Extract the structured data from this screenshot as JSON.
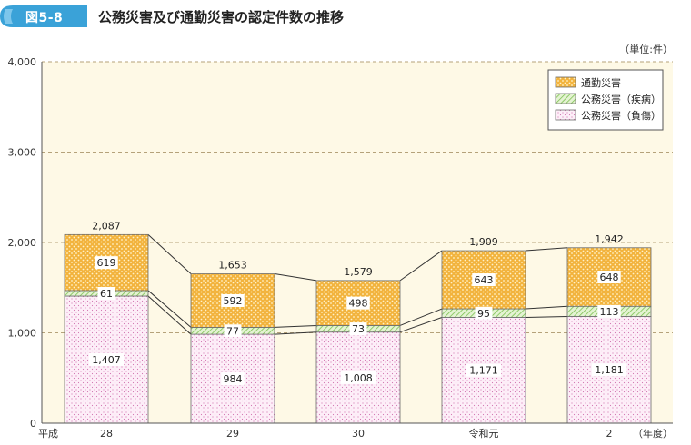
{
  "figure": {
    "number": "図5-8",
    "title": "公務災害及び通勤災害の認定件数の推移"
  },
  "chart_data": {
    "type": "bar",
    "stacked": true,
    "unit_label": "（単位:件）",
    "x_prefix": "平成",
    "x_suffix": "（年度）",
    "categories": [
      "28",
      "29",
      "30",
      "令和元",
      "2"
    ],
    "series": [
      {
        "name": "公務災害（負傷）",
        "values": [
          1407,
          984,
          1008,
          1171,
          1181
        ],
        "color": "#f7c8e6",
        "pattern": "dots-pink"
      },
      {
        "name": "公務災害（疾病）",
        "values": [
          61,
          77,
          73,
          95,
          113
        ],
        "color": "#cfeab2",
        "pattern": "hatch-green"
      },
      {
        "name": "通勤災害",
        "values": [
          619,
          592,
          498,
          643,
          648
        ],
        "color": "#f2b33d",
        "pattern": "dots-orange"
      }
    ],
    "totals": [
      2087,
      1653,
      1579,
      1909,
      1942
    ],
    "value_labels": [
      [
        "1,407",
        "984",
        "1,008",
        "1,171",
        "1,181"
      ],
      [
        "61",
        "77",
        "73",
        "95",
        "113"
      ],
      [
        "619",
        "592",
        "498",
        "643",
        "648"
      ]
    ],
    "total_labels": [
      "2,087",
      "1,653",
      "1,579",
      "1,909",
      "1,942"
    ],
    "y_ticks": [
      0,
      1000,
      2000,
      3000,
      4000
    ],
    "y_tick_labels": [
      "0",
      "1,000",
      "2,000",
      "3,000",
      "4,000"
    ],
    "ylim": [
      0,
      4000
    ],
    "legend_order": [
      "通勤災害",
      "公務災害（疾病）",
      "公務災害（負傷）"
    ],
    "legend_position": "top-right",
    "grid": true,
    "connector_lines": true,
    "plot_background": "#fef9e6",
    "badge_color": "#3aa2d8"
  }
}
